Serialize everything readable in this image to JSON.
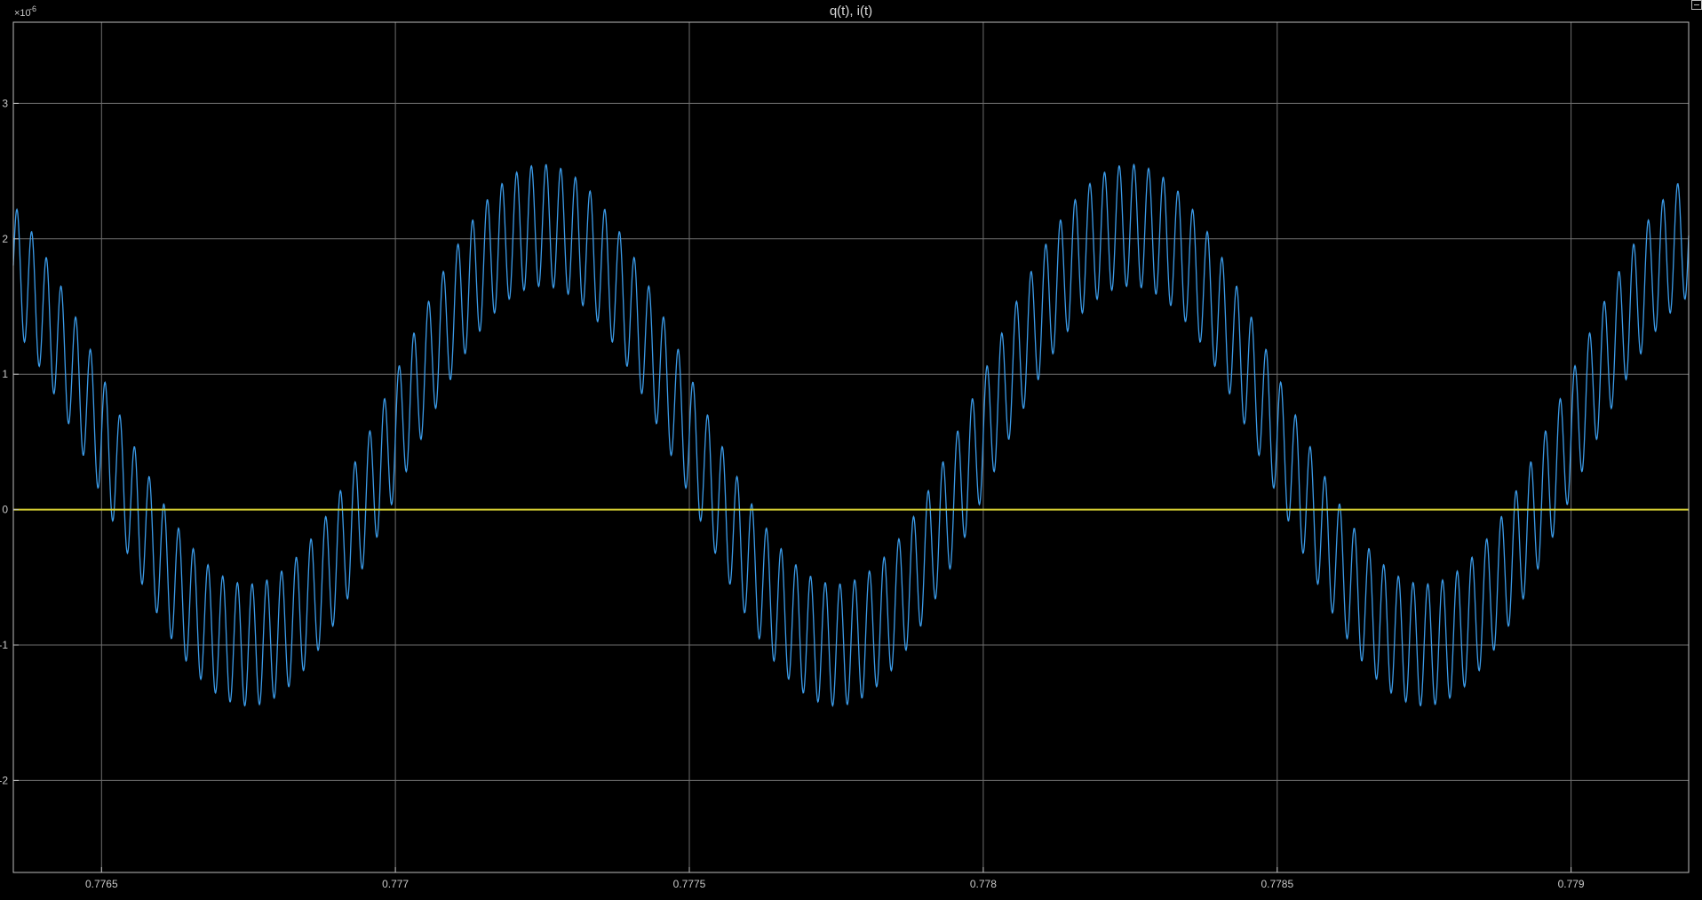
{
  "chart_data": {
    "type": "line",
    "title": "q(t), i(t)",
    "xlabel": "",
    "ylabel": "",
    "y_exponent_label": "×10",
    "y_exponent_power": "-6",
    "xlim": [
      0.77635,
      0.7792
    ],
    "ylim": [
      -2.68,
      3.6
    ],
    "x_ticks": [
      0.7765,
      0.777,
      0.7775,
      0.778,
      0.7785,
      0.779
    ],
    "x_tick_labels": [
      "0.7765",
      "0.777",
      "0.7775",
      "0.778",
      "0.7785",
      "0.779"
    ],
    "y_ticks": [
      -2,
      -1,
      0,
      1,
      2,
      3
    ],
    "y_tick_labels": [
      "-2",
      "-1",
      "0",
      "1",
      "2",
      "3"
    ],
    "grid": true,
    "series": [
      {
        "color": "#3b9be8",
        "model": {
          "offset": 0.55,
          "fundamental_amplitude": 1.55,
          "fundamental_period": 0.001,
          "fundamental_peak_time": 0.77725,
          "ripple_amplitude": 0.45,
          "ripple_period": 2.5e-05
        }
      },
      {
        "color": "#d7d033",
        "value": 0
      }
    ],
    "colors": {
      "background": "#000000",
      "grid": "#6e6e6e",
      "frame": "#bdbdbd",
      "text": "#c8c8c8"
    }
  }
}
